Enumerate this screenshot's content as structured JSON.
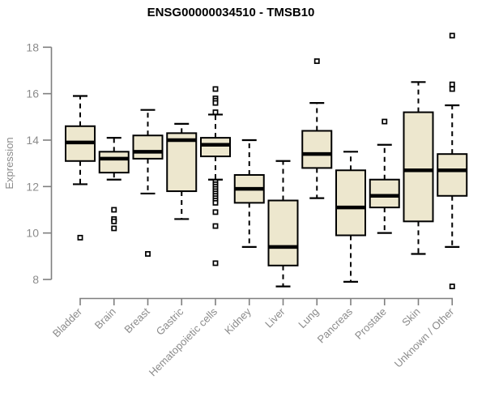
{
  "title": "ENSG00000034510 - TMSB10",
  "chart_data": {
    "type": "boxplot",
    "title": "ENSG00000034510 - TMSB10",
    "ylabel": "Expression",
    "ylim": [
      8,
      18
    ],
    "yticks": [
      8,
      10,
      12,
      14,
      16,
      18
    ],
    "grid": false,
    "legend": "none",
    "categories": [
      "Bladder",
      "Brain",
      "Breast",
      "Gastric",
      "Hematopoietic cells",
      "Kidney",
      "Liver",
      "Lung",
      "Pancreas",
      "Prostate",
      "Skin",
      "Unknown / Other"
    ],
    "series": [
      {
        "name": "Bladder",
        "whisker_low": 12.1,
        "q1": 13.1,
        "median": 13.9,
        "q3": 14.6,
        "whisker_high": 15.9,
        "outliers": [
          9.8
        ]
      },
      {
        "name": "Brain",
        "whisker_low": 12.3,
        "q1": 12.6,
        "median": 13.2,
        "q3": 13.5,
        "whisker_high": 14.1,
        "outliers": [
          11.0,
          10.6,
          10.5,
          10.2
        ]
      },
      {
        "name": "Breast",
        "whisker_low": 11.7,
        "q1": 13.2,
        "median": 13.5,
        "q3": 14.2,
        "whisker_high": 15.3,
        "outliers": [
          9.1
        ]
      },
      {
        "name": "Gastric",
        "whisker_low": 10.6,
        "q1": 11.8,
        "median": 14.0,
        "q3": 14.3,
        "whisker_high": 14.7,
        "outliers": []
      },
      {
        "name": "Hematopoietic cells",
        "whisker_low": 12.3,
        "q1": 13.3,
        "median": 13.8,
        "q3": 14.1,
        "whisker_high": 15.1,
        "outliers": [
          16.2,
          15.8,
          15.7,
          15.6,
          15.2,
          12.2,
          12.1,
          12.0,
          11.9,
          11.8,
          11.7,
          11.6,
          11.5,
          11.4,
          11.3,
          10.9,
          10.3,
          8.7
        ]
      },
      {
        "name": "Kidney",
        "whisker_low": 9.4,
        "q1": 11.3,
        "median": 11.9,
        "q3": 12.5,
        "whisker_high": 14.0,
        "outliers": []
      },
      {
        "name": "Liver",
        "whisker_low": 7.7,
        "q1": 8.6,
        "median": 9.4,
        "q3": 11.4,
        "whisker_high": 13.1,
        "outliers": []
      },
      {
        "name": "Lung",
        "whisker_low": 11.5,
        "q1": 12.8,
        "median": 13.4,
        "q3": 14.4,
        "whisker_high": 15.6,
        "outliers": [
          17.4
        ]
      },
      {
        "name": "Pancreas",
        "whisker_low": 7.9,
        "q1": 9.9,
        "median": 11.1,
        "q3": 12.7,
        "whisker_high": 13.5,
        "outliers": []
      },
      {
        "name": "Prostate",
        "whisker_low": 10.0,
        "q1": 11.1,
        "median": 11.6,
        "q3": 12.3,
        "whisker_high": 13.8,
        "outliers": [
          14.8
        ]
      },
      {
        "name": "Skin",
        "whisker_low": 9.1,
        "q1": 10.5,
        "median": 12.7,
        "q3": 15.2,
        "whisker_high": 16.5,
        "outliers": []
      },
      {
        "name": "Unknown / Other",
        "whisker_low": 9.4,
        "q1": 11.6,
        "median": 12.7,
        "q3": 13.4,
        "whisker_high": 15.5,
        "outliers": [
          18.5,
          16.4,
          16.2,
          7.7
        ]
      }
    ],
    "colors": {
      "box_fill": "#ede7ce",
      "box_border": "#000000",
      "median": "#000000",
      "whisker": "#000000",
      "outlier_stroke": "#000000",
      "outlier_fill": "#ffffff",
      "axis": "#7f7f7f",
      "tick_label": "#8b8b8b",
      "title": "#000000",
      "background": "#ffffff"
    }
  }
}
